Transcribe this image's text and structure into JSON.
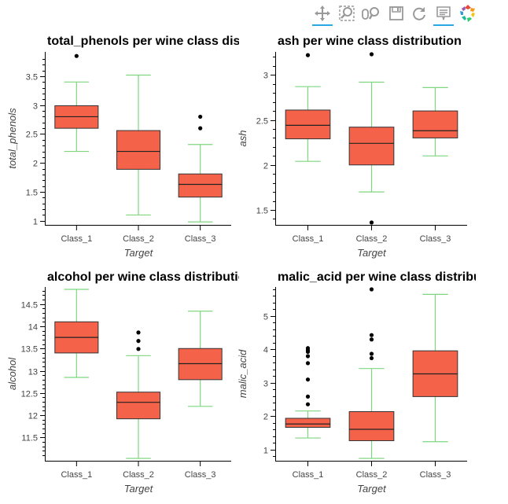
{
  "toolbar": {
    "tools": [
      {
        "id": "pan",
        "icon": "pan-icon",
        "active": true
      },
      {
        "id": "box-zoom",
        "icon": "box-zoom-icon",
        "active": false
      },
      {
        "id": "wheel-zoom",
        "icon": "wheel-zoom-icon",
        "active": false
      },
      {
        "id": "save",
        "icon": "save-icon",
        "active": false
      },
      {
        "id": "reset",
        "icon": "reset-icon",
        "active": false
      },
      {
        "id": "hover",
        "icon": "hover-icon",
        "active": true
      },
      {
        "id": "bokeh-logo",
        "icon": "bokeh-logo-icon",
        "active": false
      }
    ]
  },
  "colors": {
    "box_fill": "#f4624a",
    "whisker": "#7fd67f",
    "outlier": "#000000",
    "median": "#222222"
  },
  "chart_data": [
    {
      "type": "box",
      "title": "total_phenols per wine class distribution",
      "xlabel": "Target",
      "ylabel": "total_phenols",
      "categories": [
        "Class_1",
        "Class_2",
        "Class_3"
      ],
      "ylim": [
        0.97,
        3.88
      ],
      "yticks": [
        1,
        1.5,
        2,
        2.5,
        3,
        3.5
      ],
      "yticklabels": [
        "1",
        "1.5",
        "2",
        "2.5",
        "3",
        "3.5"
      ],
      "boxes": [
        {
          "lower": 2.2,
          "q1": 2.6,
          "median": 2.8,
          "q3": 2.99,
          "upper": 3.4,
          "outliers": [
            3.85
          ]
        },
        {
          "lower": 1.1,
          "q1": 1.89,
          "median": 2.2,
          "q3": 2.56,
          "upper": 3.52,
          "outliers": []
        },
        {
          "lower": 0.98,
          "q1": 1.41,
          "median": 1.63,
          "q3": 1.81,
          "upper": 2.32,
          "outliers": [
            2.6,
            2.8
          ]
        }
      ]
    },
    {
      "type": "box",
      "title": "ash per wine class distribution",
      "xlabel": "Target",
      "ylabel": "ash",
      "categories": [
        "Class_1",
        "Class_2",
        "Class_3"
      ],
      "ylim": [
        1.36,
        3.23
      ],
      "yticks": [
        1.5,
        2,
        2.5,
        3
      ],
      "yticklabels": [
        "1.5",
        "2",
        "2.5",
        "3"
      ],
      "boxes": [
        {
          "lower": 2.04,
          "q1": 2.29,
          "median": 2.44,
          "q3": 2.61,
          "upper": 2.87,
          "outliers": [
            3.22
          ]
        },
        {
          "lower": 1.7,
          "q1": 2.0,
          "median": 2.24,
          "q3": 2.42,
          "upper": 2.92,
          "outliers": [
            1.36,
            3.23
          ]
        },
        {
          "lower": 2.1,
          "q1": 2.3,
          "median": 2.38,
          "q3": 2.6,
          "upper": 2.86,
          "outliers": []
        }
      ]
    },
    {
      "type": "box",
      "title": "alcohol per wine class distribution",
      "xlabel": "Target",
      "ylabel": "alcohol",
      "categories": [
        "Class_1",
        "Class_2",
        "Class_3"
      ],
      "ylim": [
        11.03,
        14.83
      ],
      "yticks": [
        11.5,
        12,
        12.5,
        13,
        13.5,
        14,
        14.5
      ],
      "yticklabels": [
        "11.5",
        "12",
        "12.5",
        "13",
        "13.5",
        "14",
        "14.5"
      ],
      "boxes": [
        {
          "lower": 12.85,
          "q1": 13.4,
          "median": 13.75,
          "q3": 14.1,
          "upper": 14.83,
          "outliers": []
        },
        {
          "lower": 11.03,
          "q1": 11.92,
          "median": 12.29,
          "q3": 12.52,
          "upper": 13.34,
          "outliers": [
            13.49,
            13.67,
            13.86
          ]
        },
        {
          "lower": 12.2,
          "q1": 12.8,
          "median": 13.16,
          "q3": 13.5,
          "upper": 14.34,
          "outliers": []
        }
      ]
    },
    {
      "type": "box",
      "title": "malic_acid per wine class distribution",
      "xlabel": "Target",
      "ylabel": "malic_acid",
      "categories": [
        "Class_1",
        "Class_2",
        "Class_3"
      ],
      "ylim": [
        0.74,
        5.8
      ],
      "yticks": [
        1,
        2,
        3,
        4,
        5
      ],
      "yticklabels": [
        "1",
        "2",
        "3",
        "4",
        "5"
      ],
      "boxes": [
        {
          "lower": 1.35,
          "q1": 1.67,
          "median": 1.77,
          "q3": 1.94,
          "upper": 2.16,
          "outliers": [
            2.36,
            2.59,
            3.1,
            3.59,
            3.8,
            3.93,
            3.98,
            4.04
          ]
        },
        {
          "lower": 0.74,
          "q1": 1.27,
          "median": 1.61,
          "q3": 2.14,
          "upper": 3.43,
          "outliers": [
            3.74,
            3.87,
            4.3,
            4.43,
            5.8
          ]
        },
        {
          "lower": 1.24,
          "q1": 2.59,
          "median": 3.27,
          "q3": 3.96,
          "upper": 5.65,
          "outliers": []
        }
      ]
    }
  ]
}
